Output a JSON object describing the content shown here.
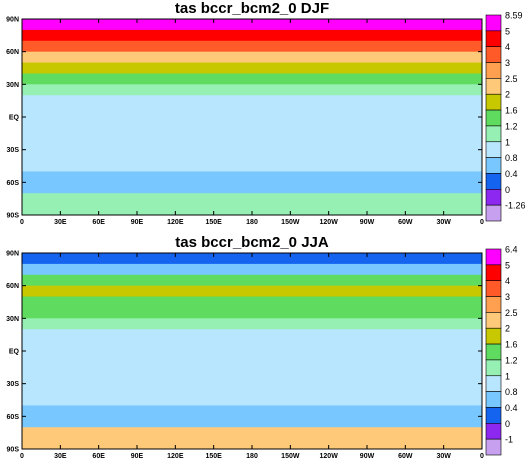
{
  "panels": [
    {
      "title": "tas bccr_bcm2_0 DJF",
      "colorbar": {
        "labels": [
          "8.59",
          "5",
          "4",
          "3",
          "2.5",
          "2",
          "1.6",
          "1.2",
          "1",
          "0.8",
          "0.4",
          "0",
          "-1.26"
        ],
        "colors": [
          "#ff00ff",
          "#ff0000",
          "#ff5a28",
          "#ff9f50",
          "#ffc97a",
          "#c8c800",
          "#5fdc5f",
          "#96f0b4",
          "#b9e6ff",
          "#78c8ff",
          "#1464f0",
          "#8c28f0",
          "#c8a0f0"
        ]
      }
    },
    {
      "title": "tas bccr_bcm2_0 JJA",
      "colorbar": {
        "labels": [
          "6.4",
          "5",
          "4",
          "3",
          "2.5",
          "2",
          "1.6",
          "1.2",
          "1",
          "0.8",
          "0.4",
          "0",
          "-1"
        ],
        "colors": [
          "#ff00ff",
          "#ff0000",
          "#ff5a28",
          "#ff9f50",
          "#ffc97a",
          "#c8c800",
          "#5fdc5f",
          "#96f0b4",
          "#b9e6ff",
          "#78c8ff",
          "#1464f0",
          "#8c28f0",
          "#c8a0f0"
        ]
      }
    }
  ],
  "axes": {
    "lat_labels": [
      "90N",
      "60N",
      "30N",
      "EQ",
      "30S",
      "60S",
      "90S"
    ],
    "lon_labels": [
      "0",
      "30E",
      "60E",
      "90E",
      "120E",
      "150E",
      "180",
      "150W",
      "120W",
      "90W",
      "60W",
      "30W",
      "0"
    ]
  },
  "chart_data": {
    "type": "heatmap",
    "panels": [
      {
        "title": "tas bccr_bcm2_0 DJF",
        "x_range": [
          0,
          360
        ],
        "y_range": [
          -90,
          90
        ],
        "colorbar_levels": [
          8.59,
          5,
          4,
          3,
          2.5,
          2,
          1.6,
          1.2,
          1,
          0.8,
          0.4,
          0,
          -1.26
        ],
        "zonal_profile": [
          {
            "lat": 85,
            "value": 5
          },
          {
            "lat": 75,
            "value": 4
          },
          {
            "lat": 65,
            "value": 3
          },
          {
            "lat": 55,
            "value": 2
          },
          {
            "lat": 45,
            "value": 1.6
          },
          {
            "lat": 35,
            "value": 1.2
          },
          {
            "lat": 25,
            "value": 1
          },
          {
            "lat": 15,
            "value": 0.9
          },
          {
            "lat": 5,
            "value": 0.9
          },
          {
            "lat": -5,
            "value": 0.9
          },
          {
            "lat": -15,
            "value": 0.8
          },
          {
            "lat": -25,
            "value": 0.8
          },
          {
            "lat": -35,
            "value": 0.9
          },
          {
            "lat": -45,
            "value": 0.9
          },
          {
            "lat": -55,
            "value": 0.6
          },
          {
            "lat": -65,
            "value": 0.5
          },
          {
            "lat": -75,
            "value": 1
          },
          {
            "lat": -85,
            "value": 1
          }
        ]
      },
      {
        "title": "tas bccr_bcm2_0 JJA",
        "x_range": [
          0,
          360
        ],
        "y_range": [
          -90,
          90
        ],
        "colorbar_levels": [
          6.4,
          5,
          4,
          3,
          2.5,
          2,
          1.6,
          1.2,
          1,
          0.8,
          0.4,
          0,
          -1
        ],
        "zonal_profile": [
          {
            "lat": 85,
            "value": 0.3
          },
          {
            "lat": 75,
            "value": 0.6
          },
          {
            "lat": 65,
            "value": 1.4
          },
          {
            "lat": 55,
            "value": 1.6
          },
          {
            "lat": 45,
            "value": 1.4
          },
          {
            "lat": 35,
            "value": 1.2
          },
          {
            "lat": 25,
            "value": 1
          },
          {
            "lat": 15,
            "value": 0.9
          },
          {
            "lat": 5,
            "value": 0.8
          },
          {
            "lat": -5,
            "value": 0.9
          },
          {
            "lat": -15,
            "value": 0.8
          },
          {
            "lat": -25,
            "value": 0.9
          },
          {
            "lat": -35,
            "value": 0.8
          },
          {
            "lat": -45,
            "value": 0.8
          },
          {
            "lat": -55,
            "value": 0.6
          },
          {
            "lat": -65,
            "value": 0.5
          },
          {
            "lat": -75,
            "value": 2
          },
          {
            "lat": -85,
            "value": 2
          }
        ]
      }
    ]
  }
}
